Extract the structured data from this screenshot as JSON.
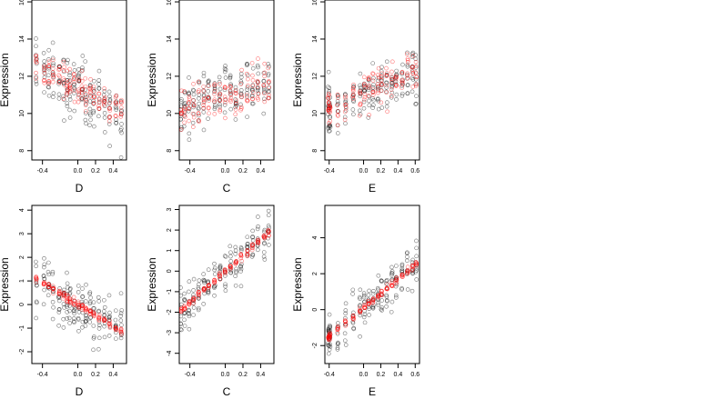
{
  "chart_data": [
    {
      "type": "scatter",
      "xlabel": "D",
      "ylabel": "Expression",
      "xlim": [
        -0.52,
        0.55
      ],
      "ylim": [
        7.5,
        16.1
      ],
      "xticks": [
        -0.4,
        0.0,
        0.2,
        0.4
      ],
      "xtick_labels": [
        "-0.4",
        "0.0",
        "0.2",
        "0.4"
      ],
      "yticks": [
        8,
        10,
        12,
        14,
        16
      ],
      "ytick_labels": [
        "8",
        "10",
        "12",
        "14",
        "16"
      ],
      "x_levels": [
        -0.47,
        -0.38,
        -0.33,
        -0.28,
        -0.21,
        -0.16,
        -0.12,
        -0.09,
        -0.04,
        0.01,
        0.05,
        0.09,
        0.14,
        0.18,
        0.24,
        0.3,
        0.36,
        0.43,
        0.49
      ],
      "black_trend": {
        "slope": -2.6,
        "intercept": 11.3,
        "spread": 1.4
      },
      "red_trend": {
        "slope": -2.6,
        "intercept": 11.4,
        "spread": 0.8
      },
      "series": [
        {
          "color": "#000000"
        },
        {
          "color": "#ff0000"
        }
      ]
    },
    {
      "type": "scatter",
      "xlabel": "C",
      "ylabel": "Expression",
      "xlim": [
        -0.52,
        0.55
      ],
      "ylim": [
        7.5,
        16.1
      ],
      "xticks": [
        -0.4,
        0.0,
        0.2,
        0.4
      ],
      "xtick_labels": [
        "-0.4",
        "0.0",
        "0.2",
        "0.4"
      ],
      "yticks": [
        8,
        10,
        12,
        14,
        16
      ],
      "ytick_labels": [
        "8",
        "10",
        "12",
        "14",
        "16"
      ],
      "x_levels": [
        -0.5,
        -0.46,
        -0.41,
        -0.36,
        -0.3,
        -0.24,
        -0.19,
        -0.12,
        -0.06,
        0.0,
        0.06,
        0.12,
        0.18,
        0.25,
        0.31,
        0.37,
        0.44,
        0.49
      ],
      "black_trend": {
        "slope": 1.6,
        "intercept": 10.9,
        "spread": 1.3
      },
      "red_trend": {
        "slope": 1.6,
        "intercept": 10.9,
        "spread": 0.9
      },
      "series": [
        {
          "color": "#000000"
        },
        {
          "color": "#ff0000"
        }
      ]
    },
    {
      "type": "scatter",
      "xlabel": "E",
      "ylabel": "Expression",
      "xlim": [
        -0.45,
        0.65
      ],
      "ylim": [
        7.5,
        16.1
      ],
      "xticks": [
        -0.4,
        0.0,
        0.2,
        0.4,
        0.6
      ],
      "xtick_labels": [
        "-0.4",
        "0.0",
        "0.2",
        "0.4",
        "0.6"
      ],
      "yticks": [
        8,
        10,
        12,
        14,
        16
      ],
      "ytick_labels": [
        "8",
        "10",
        "12",
        "14",
        "16"
      ],
      "x_levels": [
        -0.41,
        -0.4,
        -0.39,
        -0.3,
        -0.21,
        -0.12,
        -0.04,
        0.01,
        0.06,
        0.11,
        0.17,
        0.21,
        0.27,
        0.33,
        0.38,
        0.45,
        0.51,
        0.57,
        0.61
      ],
      "black_trend": {
        "slope": 1.8,
        "intercept": 11.0,
        "spread": 1.2
      },
      "red_trend": {
        "slope": 2.0,
        "intercept": 11.1,
        "spread": 0.9
      },
      "series": [
        {
          "color": "#000000"
        },
        {
          "color": "#ff0000"
        }
      ]
    },
    {
      "type": "scatter",
      "xlabel": "D",
      "ylabel": "Expression",
      "xlim": [
        -0.52,
        0.55
      ],
      "ylim": [
        -2.5,
        4.2
      ],
      "xticks": [
        -0.4,
        0.0,
        0.2,
        0.4
      ],
      "xtick_labels": [
        "-0.4",
        "0.0",
        "0.2",
        "0.4"
      ],
      "yticks": [
        -2,
        -1,
        0,
        1,
        2,
        3,
        4
      ],
      "ytick_labels": [
        "-2",
        "-1",
        "0",
        "1",
        "2",
        "3",
        "4"
      ],
      "x_levels": [
        -0.47,
        -0.38,
        -0.33,
        -0.28,
        -0.21,
        -0.16,
        -0.12,
        -0.09,
        -0.04,
        0.01,
        0.05,
        0.09,
        0.14,
        0.18,
        0.24,
        0.3,
        0.36,
        0.43,
        0.49
      ],
      "black_trend": {
        "slope": -2.3,
        "intercept": 0.0,
        "spread": 0.95
      },
      "red_trend": {
        "slope": -2.3,
        "intercept": 0.0,
        "spread": 0.12
      },
      "series": [
        {
          "color": "#000000"
        },
        {
          "color": "#ff0000"
        }
      ]
    },
    {
      "type": "scatter",
      "xlabel": "C",
      "ylabel": "Expression",
      "xlim": [
        -0.52,
        0.55
      ],
      "ylim": [
        -4.5,
        3.2
      ],
      "xticks": [
        -0.4,
        0.0,
        0.2,
        0.4
      ],
      "xtick_labels": [
        "-0.4",
        "0.0",
        "0.2",
        "0.4"
      ],
      "yticks": [
        -4,
        -3,
        -2,
        -1,
        0,
        1,
        2,
        3
      ],
      "ytick_labels": [
        "-4",
        "-3",
        "-2",
        "-1",
        "0",
        "1",
        "2",
        "3"
      ],
      "x_levels": [
        -0.5,
        -0.46,
        -0.41,
        -0.36,
        -0.3,
        -0.24,
        -0.19,
        -0.12,
        -0.06,
        0.0,
        0.06,
        0.12,
        0.18,
        0.25,
        0.31,
        0.37,
        0.44,
        0.49
      ],
      "black_trend": {
        "slope": 3.8,
        "intercept": 0.0,
        "spread": 0.9
      },
      "red_trend": {
        "slope": 3.8,
        "intercept": 0.0,
        "spread": 0.14
      },
      "series": [
        {
          "color": "#000000"
        },
        {
          "color": "#ff0000"
        }
      ]
    },
    {
      "type": "scatter",
      "xlabel": "E",
      "ylabel": "Expression",
      "xlim": [
        -0.45,
        0.65
      ],
      "ylim": [
        -3.0,
        5.8
      ],
      "xticks": [
        -0.4,
        0.0,
        0.2,
        0.4,
        0.6
      ],
      "xtick_labels": [
        "-0.4",
        "0.0",
        "0.2",
        "0.4",
        "0.6"
      ],
      "yticks": [
        -2,
        0,
        2,
        4
      ],
      "ytick_labels": [
        "-2",
        "0",
        "2",
        "4"
      ],
      "x_levels": [
        -0.41,
        -0.4,
        -0.39,
        -0.3,
        -0.21,
        -0.12,
        -0.04,
        0.01,
        0.06,
        0.11,
        0.17,
        0.21,
        0.27,
        0.33,
        0.38,
        0.45,
        0.51,
        0.57,
        0.61
      ],
      "black_trend": {
        "slope": 4.0,
        "intercept": 0.1,
        "spread": 1.0
      },
      "red_trend": {
        "slope": 4.0,
        "intercept": 0.1,
        "spread": 0.15
      },
      "series": [
        {
          "color": "#000000"
        },
        {
          "color": "#ff0000"
        }
      ]
    }
  ]
}
